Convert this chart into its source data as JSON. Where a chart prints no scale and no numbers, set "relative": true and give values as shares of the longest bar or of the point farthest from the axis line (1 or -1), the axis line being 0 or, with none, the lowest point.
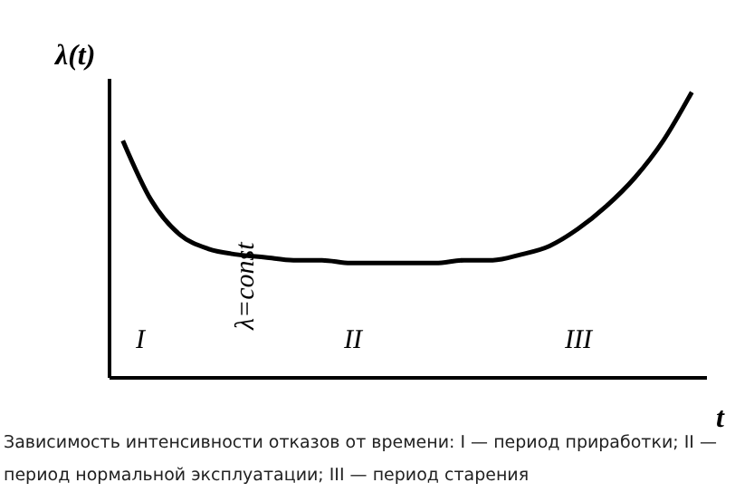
{
  "chart_data": {
    "type": "line",
    "relative": true,
    "xlabel": "t",
    "ylabel": "λ(t)",
    "grid": false,
    "legend": false,
    "categories": [
      null,
      null,
      null,
      null,
      null,
      null,
      null,
      null,
      null,
      null,
      null,
      null,
      null,
      null,
      null,
      null,
      null,
      null,
      null,
      null,
      null
    ],
    "series": [
      {
        "color": "#000000",
        "values": [
          0.83,
          0.62,
          0.5,
          0.45,
          0.43,
          0.42,
          0.41,
          0.41,
          0.4,
          0.4,
          0.4,
          0.4,
          0.41,
          0.41,
          0.43,
          0.46,
          0.52,
          0.6,
          0.7,
          0.83,
          1.0
        ]
      }
    ],
    "annotations": [
      "I",
      "II",
      "III",
      "λ=const",
      "Зависимость интенсивности отказов от времени: I — период приработки; II — период нормальной эксплуатации; III — период старения"
    ]
  }
}
